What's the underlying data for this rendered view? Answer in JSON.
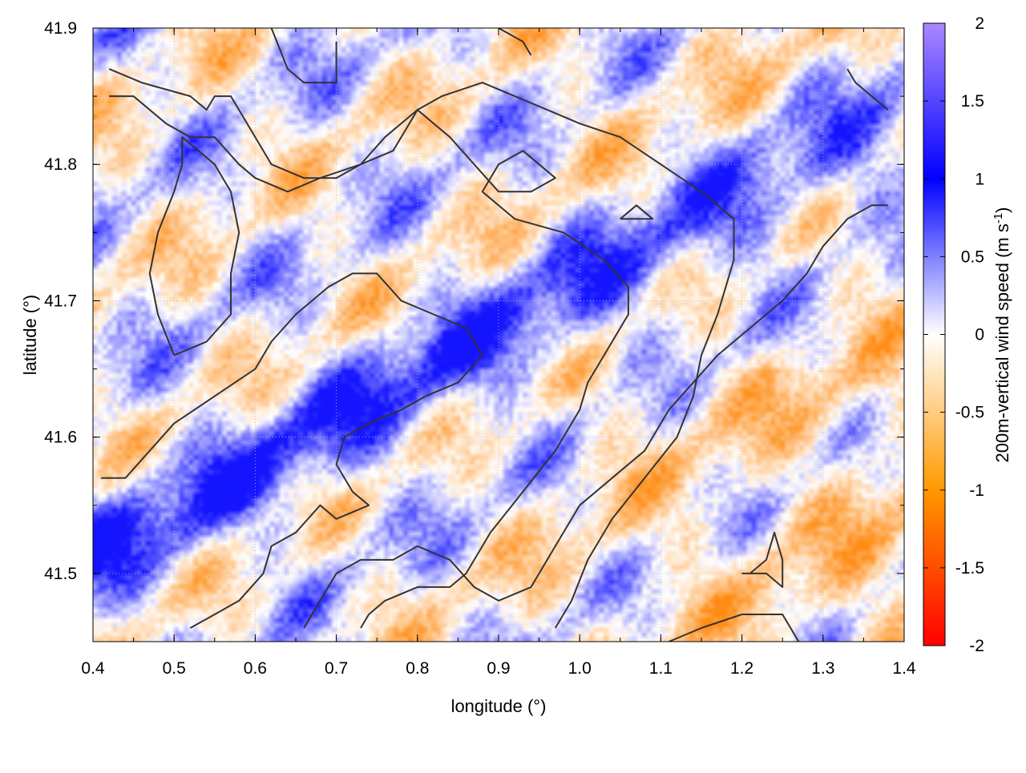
{
  "chart_data": {
    "type": "heatmap",
    "xlabel": "longitude (°)",
    "ylabel": "latitude (°)",
    "xlim": [
      0.4,
      1.4
    ],
    "ylim": [
      41.45,
      41.9
    ],
    "x_ticks": [
      "0.4",
      "0.5",
      "0.6",
      "0.7",
      "0.8",
      "0.9",
      "1.0",
      "1.1",
      "1.2",
      "1.3",
      "1.4"
    ],
    "y_ticks": [
      "41.5",
      "41.6",
      "41.7",
      "41.8",
      "41.9"
    ],
    "grid": true,
    "colorbar": {
      "label_main": "200m-vertical wind speed (m s",
      "label_sup": "-1",
      "label_close": ")",
      "range": [
        -2,
        2
      ],
      "ticks": [
        "-2",
        "-1.5",
        "-1",
        "-0.5",
        "0",
        "0.5",
        "1",
        "1.5",
        "2"
      ],
      "colors": [
        "#ff0000",
        "#ff9900",
        "#ffffff",
        "#0000ff",
        "#aa88ff"
      ]
    },
    "field_description_values": {
      "positive_color": "#0000ff",
      "negative_color": "#ff8c00"
    },
    "contour_color": "#333333",
    "contours": [
      [
        [
          0.42,
          41.87
        ],
        [
          0.46,
          41.86
        ],
        [
          0.52,
          41.85
        ],
        [
          0.54,
          41.84
        ],
        [
          0.55,
          41.85
        ],
        [
          0.57,
          41.85
        ],
        [
          0.6,
          41.82
        ],
        [
          0.61,
          41.81
        ],
        [
          0.62,
          41.8
        ],
        [
          0.66,
          41.79
        ],
        [
          0.7,
          41.79
        ],
        [
          0.73,
          41.8
        ],
        [
          0.77,
          41.81
        ],
        [
          0.79,
          41.83
        ],
        [
          0.8,
          41.84
        ],
        [
          0.82,
          41.83
        ],
        [
          0.84,
          41.82
        ],
        [
          0.87,
          41.8
        ],
        [
          0.9,
          41.78
        ],
        [
          0.94,
          41.78
        ],
        [
          0.97,
          41.79
        ],
        [
          0.93,
          41.81
        ],
        [
          0.9,
          41.8
        ],
        [
          0.88,
          41.78
        ],
        [
          0.92,
          41.76
        ],
        [
          0.98,
          41.75
        ],
        [
          1.03,
          41.73
        ],
        [
          1.06,
          41.71
        ],
        [
          1.06,
          41.69
        ],
        [
          1.03,
          41.66
        ],
        [
          1.01,
          41.64
        ],
        [
          1.0,
          41.62
        ],
        [
          0.97,
          41.59
        ],
        [
          0.93,
          41.56
        ],
        [
          0.89,
          41.53
        ],
        [
          0.86,
          41.5
        ],
        [
          0.84,
          41.49
        ],
        [
          0.8,
          41.49
        ],
        [
          0.76,
          41.48
        ],
        [
          0.74,
          41.47
        ],
        [
          0.73,
          41.46
        ]
      ],
      [
        [
          0.42,
          41.85
        ],
        [
          0.45,
          41.85
        ],
        [
          0.49,
          41.83
        ],
        [
          0.52,
          41.82
        ],
        [
          0.55,
          41.82
        ],
        [
          0.58,
          41.8
        ],
        [
          0.6,
          41.79
        ],
        [
          0.64,
          41.78
        ],
        [
          0.68,
          41.79
        ],
        [
          0.73,
          41.8
        ],
        [
          0.76,
          41.82
        ],
        [
          0.8,
          41.84
        ],
        [
          0.83,
          41.85
        ],
        [
          0.88,
          41.86
        ],
        [
          0.92,
          41.85
        ],
        [
          0.96,
          41.84
        ],
        [
          1.0,
          41.83
        ],
        [
          1.05,
          41.82
        ],
        [
          1.1,
          41.8
        ],
        [
          1.15,
          41.78
        ],
        [
          1.19,
          41.76
        ],
        [
          1.19,
          41.73
        ],
        [
          1.17,
          41.69
        ],
        [
          1.15,
          41.66
        ],
        [
          1.14,
          41.63
        ],
        [
          1.12,
          41.6
        ],
        [
          1.08,
          41.57
        ],
        [
          1.04,
          41.54
        ],
        [
          1.01,
          41.51
        ],
        [
          0.99,
          41.48
        ],
        [
          0.97,
          41.46
        ]
      ],
      [
        [
          0.5,
          41.66
        ],
        [
          0.48,
          41.69
        ],
        [
          0.47,
          41.72
        ],
        [
          0.48,
          41.75
        ],
        [
          0.5,
          41.78
        ],
        [
          0.51,
          41.8
        ],
        [
          0.51,
          41.82
        ],
        [
          0.55,
          41.8
        ],
        [
          0.57,
          41.78
        ],
        [
          0.58,
          41.75
        ],
        [
          0.57,
          41.72
        ],
        [
          0.57,
          41.69
        ],
        [
          0.54,
          41.67
        ],
        [
          0.5,
          41.66
        ]
      ],
      [
        [
          0.41,
          41.57
        ],
        [
          0.44,
          41.57
        ],
        [
          0.47,
          41.59
        ],
        [
          0.5,
          41.61
        ],
        [
          0.55,
          41.63
        ],
        [
          0.6,
          41.65
        ],
        [
          0.62,
          41.67
        ],
        [
          0.65,
          41.69
        ],
        [
          0.69,
          41.71
        ],
        [
          0.72,
          41.72
        ],
        [
          0.75,
          41.72
        ],
        [
          0.78,
          41.7
        ],
        [
          0.82,
          41.69
        ],
        [
          0.86,
          41.68
        ],
        [
          0.88,
          41.66
        ],
        [
          0.85,
          41.64
        ],
        [
          0.81,
          41.63
        ],
        [
          0.78,
          41.62
        ],
        [
          0.74,
          41.61
        ],
        [
          0.71,
          41.6
        ],
        [
          0.7,
          41.58
        ],
        [
          0.72,
          41.56
        ],
        [
          0.74,
          41.55
        ],
        [
          0.7,
          41.54
        ],
        [
          0.68,
          41.55
        ],
        [
          0.65,
          41.53
        ],
        [
          0.62,
          41.52
        ],
        [
          0.61,
          41.5
        ],
        [
          0.58,
          41.48
        ],
        [
          0.55,
          41.47
        ],
        [
          0.52,
          41.46
        ]
      ],
      [
        [
          0.66,
          41.46
        ],
        [
          0.7,
          41.5
        ],
        [
          0.73,
          41.51
        ],
        [
          0.77,
          41.51
        ],
        [
          0.8,
          41.52
        ],
        [
          0.84,
          41.51
        ],
        [
          0.87,
          41.49
        ],
        [
          0.9,
          41.48
        ],
        [
          0.94,
          41.49
        ],
        [
          0.97,
          41.52
        ],
        [
          1.0,
          41.55
        ],
        [
          1.04,
          41.57
        ],
        [
          1.08,
          41.59
        ],
        [
          1.11,
          41.62
        ],
        [
          1.14,
          41.64
        ],
        [
          1.17,
          41.66
        ],
        [
          1.21,
          41.68
        ],
        [
          1.25,
          41.7
        ],
        [
          1.28,
          41.72
        ],
        [
          1.3,
          41.74
        ],
        [
          1.33,
          41.76
        ],
        [
          1.36,
          41.77
        ],
        [
          1.38,
          41.77
        ]
      ],
      [
        [
          1.11,
          41.45
        ],
        [
          1.15,
          41.46
        ],
        [
          1.2,
          41.47
        ],
        [
          1.25,
          41.47
        ],
        [
          1.27,
          41.45
        ]
      ],
      [
        [
          1.2,
          41.5
        ],
        [
          1.23,
          41.5
        ],
        [
          1.25,
          41.49
        ],
        [
          1.25,
          41.51
        ],
        [
          1.24,
          41.53
        ],
        [
          1.23,
          41.51
        ],
        [
          1.21,
          41.5
        ]
      ],
      [
        [
          1.33,
          41.87
        ],
        [
          1.34,
          41.86
        ],
        [
          1.36,
          41.85
        ],
        [
          1.38,
          41.84
        ]
      ],
      [
        [
          0.62,
          41.9
        ],
        [
          0.64,
          41.87
        ],
        [
          0.66,
          41.86
        ],
        [
          0.7,
          41.86
        ],
        [
          0.7,
          41.89
        ]
      ],
      [
        [
          1.05,
          41.76
        ],
        [
          1.07,
          41.76
        ],
        [
          1.09,
          41.76
        ],
        [
          1.07,
          41.77
        ],
        [
          1.05,
          41.76
        ]
      ],
      [
        [
          0.9,
          41.9
        ],
        [
          0.93,
          41.89
        ],
        [
          0.94,
          41.88
        ]
      ]
    ]
  }
}
